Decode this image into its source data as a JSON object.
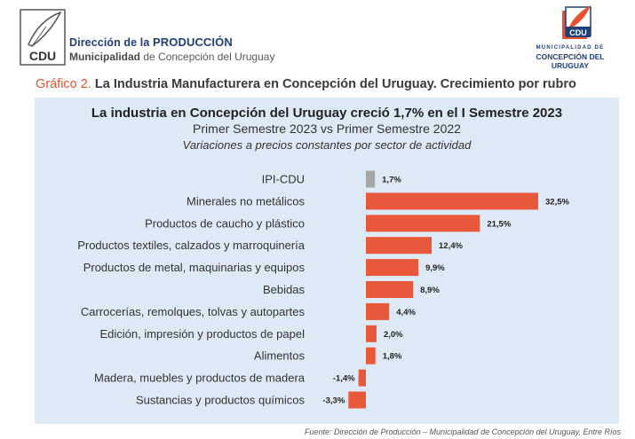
{
  "header": {
    "dept_prefix": "Dirección de la ",
    "dept_strong": "PRODUCCIÓN",
    "muni_strong": "Municipalidad",
    "muni_rest": " de Concepción del Uruguay",
    "logo_text": "CDU",
    "right_small": "MUNICIPALIDAD DE",
    "right_big": "CONCEPCIÓN DEL URUGUAY"
  },
  "figure": {
    "number": "Gráfico 2.",
    "title": "La Industria Manufacturera en Concepción del Uruguay. Crecimiento por rubro"
  },
  "chart_data": {
    "type": "bar",
    "orientation": "horizontal",
    "title": "La industria en Concepción del Uruguay creció 1,7% en el I Semestre 2023",
    "subtitle": "Primer Semestre 2023 vs Primer Semestre 2022",
    "note": "Variaciones a precios constantes por sector de actividad",
    "categories": [
      "IPI-CDU",
      "Minerales no metálicos",
      "Productos de caucho y plástico",
      "Productos textiles, calzados y marroquinería",
      "Productos de metal, maquinarias y equipos",
      "Bebidas",
      "Carrocerías, remolques, tolvas y autopartes",
      "Edición, impresión y productos de papel",
      "Alimentos",
      "Madera, muebles y productos de madera",
      "Sustancias y productos químicos"
    ],
    "values": [
      1.7,
      32.5,
      21.5,
      12.4,
      9.9,
      8.9,
      4.4,
      2.0,
      1.8,
      -1.4,
      -3.3
    ],
    "value_labels": [
      "1,7%",
      "32,5%",
      "21,5%",
      "12,4%",
      "9,9%",
      "8,9%",
      "4,4%",
      "2,0%",
      "1,8%",
      "-1,4%",
      "-3,3%"
    ],
    "colors": [
      "#a6a6a6",
      "#e8593c",
      "#e8593c",
      "#e8593c",
      "#e8593c",
      "#e8593c",
      "#e8593c",
      "#e8593c",
      "#e8593c",
      "#e8593c",
      "#e8593c"
    ],
    "grid": false,
    "legend": "none"
  },
  "source": "Fuente: Dirección de Producción – Municipalidad de Concepción del Uruguay, Entre Ríos"
}
